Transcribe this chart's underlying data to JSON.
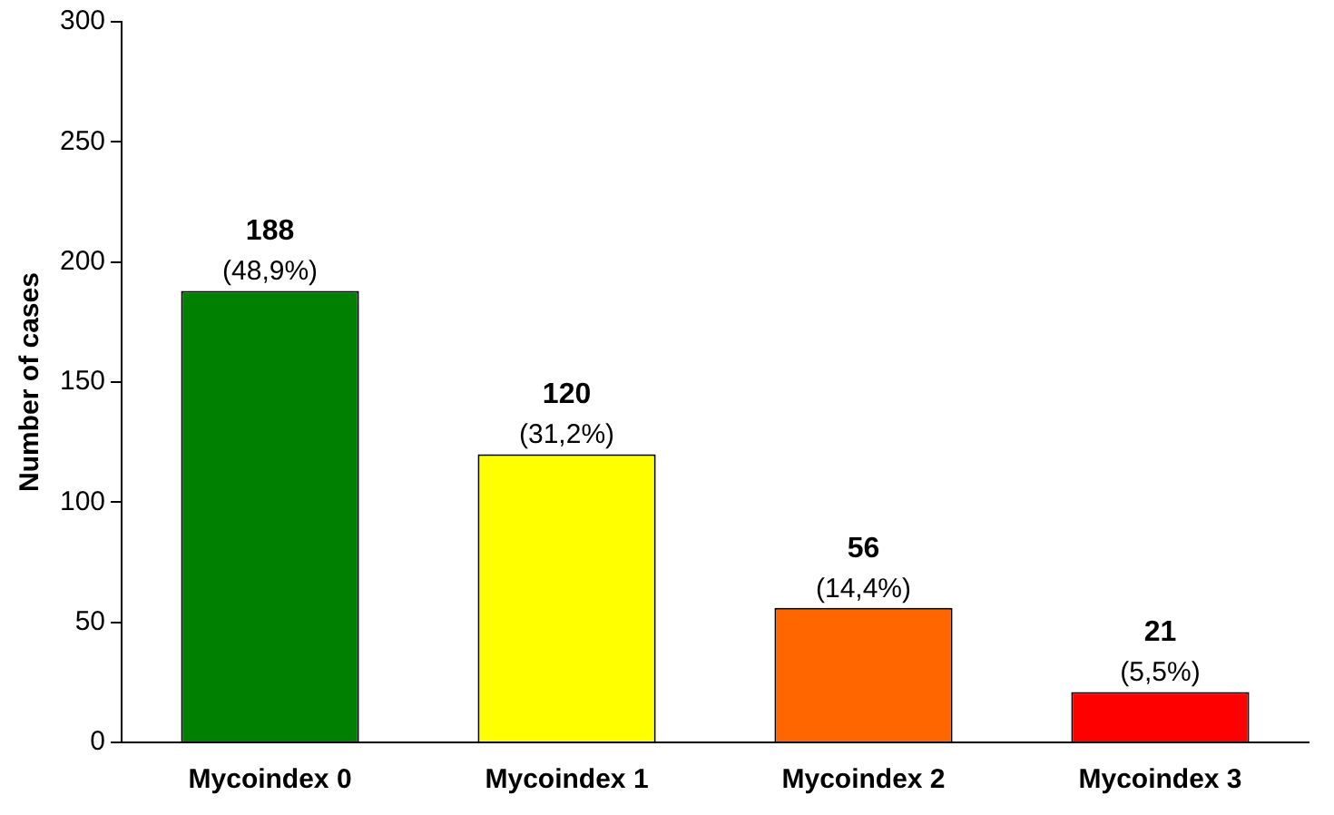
{
  "chart_data": {
    "type": "bar",
    "ylabel": "Number of cases",
    "categories": [
      "Mycoindex 0",
      "Mycoindex 1",
      "Mycoindex 2",
      "Mycoindex 3"
    ],
    "values": [
      188,
      120,
      56,
      21
    ],
    "colors": [
      "#008000",
      "#ffff00",
      "#ff6600",
      "#ff0000"
    ],
    "value_labels": [
      "188\n(48,9%)",
      "120\n(31,2%)",
      "56\n(14,4%)",
      "21\n(5,5%)"
    ],
    "ylim": [
      0,
      300
    ],
    "yticks": [
      0,
      50,
      100,
      150,
      200,
      250,
      300
    ],
    "grid": false,
    "legend": false
  }
}
